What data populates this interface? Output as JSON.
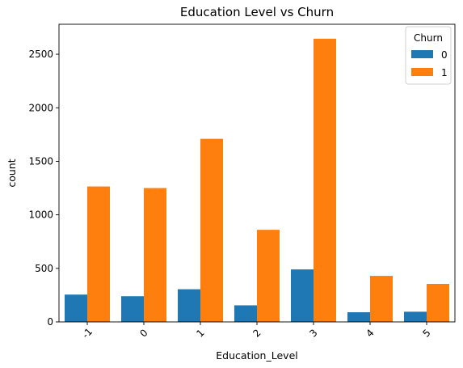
{
  "chart_data": {
    "type": "bar",
    "title": "Education Level vs Churn",
    "xlabel": "Education_Level",
    "ylabel": "count",
    "categories": [
      "-1",
      "0",
      "1",
      "2",
      "3",
      "4",
      "5"
    ],
    "series": [
      {
        "name": "0",
        "color": "#1f77b4",
        "values": [
          255,
          240,
          305,
          155,
          490,
          90,
          95
        ]
      },
      {
        "name": "1",
        "color": "#ff7f0e",
        "values": [
          1265,
          1250,
          1710,
          860,
          2645,
          430,
          355
        ]
      }
    ],
    "ylim": [
      0,
      2780
    ],
    "yticks": [
      0,
      500,
      1000,
      1500,
      2000,
      2500
    ],
    "xtick_rotation": -45,
    "grid": false,
    "legend": {
      "title": "Churn",
      "placement": "top-right"
    }
  }
}
